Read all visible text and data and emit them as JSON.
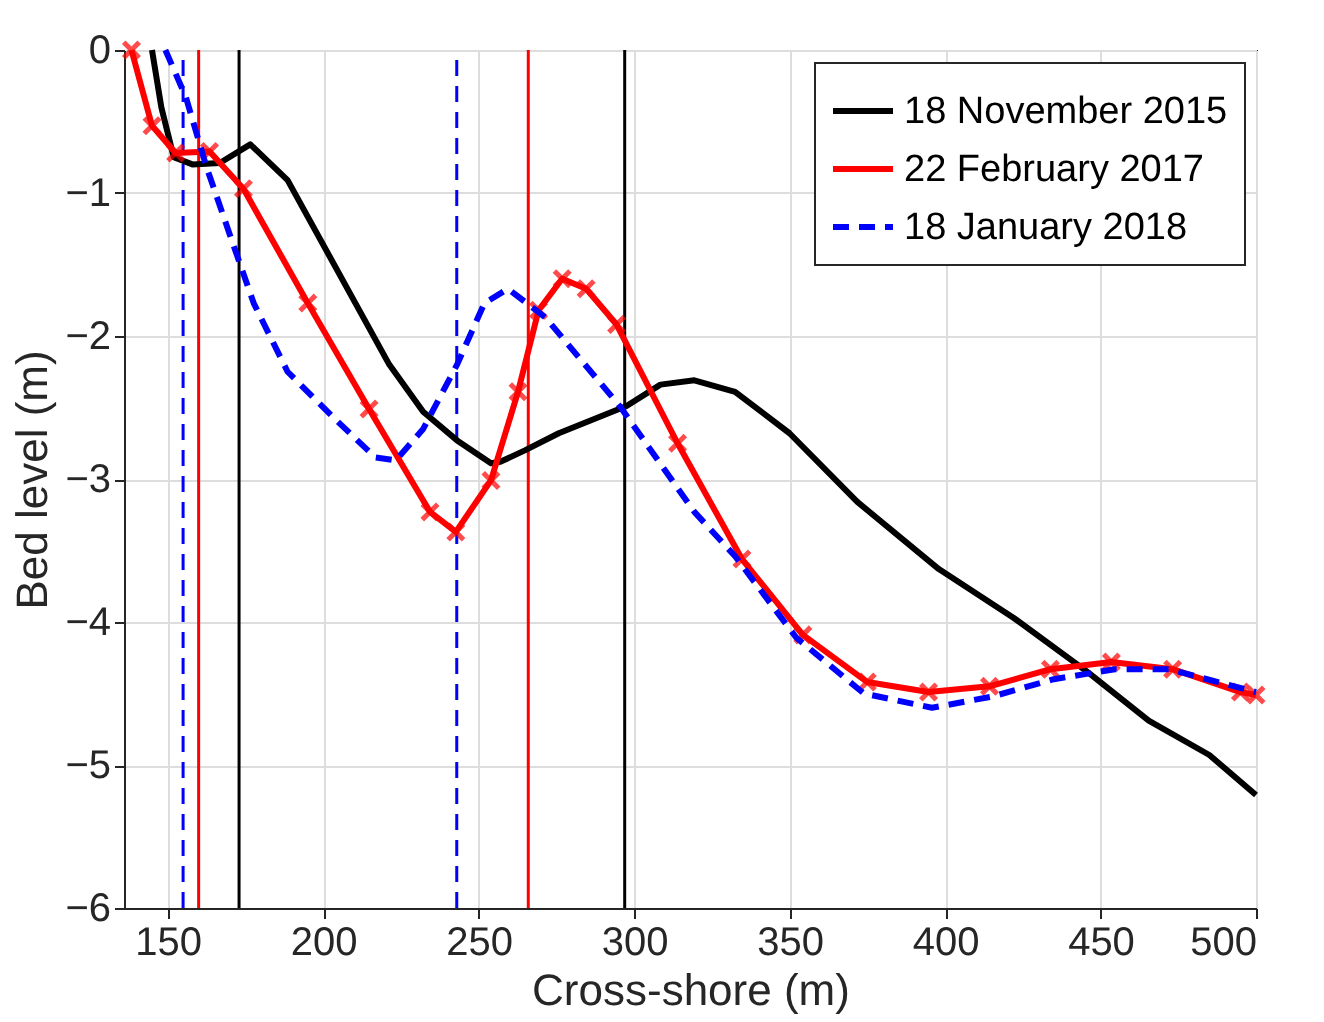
{
  "chart_data": {
    "type": "line",
    "xlabel": "Cross-shore (m)",
    "ylabel": "Bed level (m)",
    "xlim": [
      136,
      500
    ],
    "ylim": [
      -6,
      0
    ],
    "xticks": [
      150,
      200,
      250,
      300,
      350,
      400,
      450,
      500
    ],
    "yticks": [
      -6,
      -5,
      -4,
      -3,
      -2,
      -1,
      0
    ],
    "grid": true,
    "legend": "top right",
    "series": [
      {
        "name": "18 November 2015",
        "color": "#000000",
        "line_style": "solid",
        "marker": "none",
        "x": [
          145,
          148,
          152,
          158,
          166.8,
          176.6,
          188.6,
          210.4,
          221.3,
          232.2,
          243.1,
          254,
          257,
          264.9,
          275.8,
          297.6,
          308.5,
          319.4,
          332.5,
          350,
          371.8,
          398,
          422,
          445.9,
          465.5,
          485,
          500
        ],
        "values": [
          0,
          -0.4,
          -0.75,
          -0.8,
          -0.79,
          -0.66,
          -0.91,
          -1.77,
          -2.2,
          -2.53,
          -2.73,
          -2.89,
          -2.88,
          -2.8,
          -2.68,
          -2.49,
          -2.34,
          -2.31,
          -2.39,
          -2.68,
          -3.16,
          -3.63,
          -3.97,
          -4.35,
          -4.69,
          -4.93,
          -5.21
        ]
      },
      {
        "name": "22 February 2017",
        "color": "#ff0000",
        "line_style": "solid",
        "marker": "cross",
        "x": [
          138.4,
          145,
          152.6,
          163.5,
          174.4,
          195.1,
          214.8,
          234.4,
          242.7,
          254,
          262.7,
          269.3,
          276.9,
          284.6,
          294.4,
          314,
          334.7,
          354.3,
          375,
          394.7,
          414.3,
          433.9,
          453.5,
          473.2,
          495,
          500
        ],
        "values": [
          0,
          -0.53,
          -0.72,
          -0.71,
          -0.97,
          -1.77,
          -2.51,
          -3.23,
          -3.37,
          -3.01,
          -2.39,
          -1.82,
          -1.6,
          -1.67,
          -1.92,
          -2.75,
          -3.56,
          -4.09,
          -4.42,
          -4.49,
          -4.45,
          -4.33,
          -4.28,
          -4.33,
          -4.49,
          -4.51
        ]
      },
      {
        "name": "18 January 2018",
        "color": "#0000ff",
        "line_style": "dashed",
        "marker": "none",
        "x": [
          149.3,
          155.9,
          162.4,
          170,
          177.7,
          188.6,
          203.8,
          216.9,
          223.4,
          232.2,
          243.1,
          251.9,
          259.5,
          271.5,
          295.4,
          319.4,
          332.5,
          352.2,
          373.9,
          395.8,
          415.4,
          435,
          454.6,
          472,
          500
        ],
        "values": [
          0,
          -0.33,
          -0.81,
          -1.29,
          -1.77,
          -2.25,
          -2.58,
          -2.85,
          -2.87,
          -2.65,
          -2.2,
          -1.77,
          -1.67,
          -1.87,
          -2.49,
          -3.23,
          -3.54,
          -4.11,
          -4.5,
          -4.6,
          -4.52,
          -4.4,
          -4.33,
          -4.33,
          -4.49
        ]
      }
    ],
    "ref_lines": [
      {
        "axis": "x",
        "value": 155,
        "color": "#0000ff",
        "line_style": "dashed"
      },
      {
        "axis": "x",
        "value": 160,
        "color": "#ff0000",
        "line_style": "solid"
      },
      {
        "axis": "x",
        "value": 173,
        "color": "#000000",
        "line_style": "solid"
      },
      {
        "axis": "x",
        "value": 243,
        "color": "#0000ff",
        "line_style": "dashed"
      },
      {
        "axis": "x",
        "value": 266,
        "color": "#ff0000",
        "line_style": "solid"
      },
      {
        "axis": "x",
        "value": 297,
        "color": "#000000",
        "line_style": "solid"
      }
    ]
  }
}
